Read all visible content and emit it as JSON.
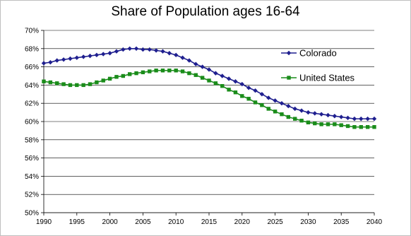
{
  "chart_data": {
    "type": "line",
    "title": "Share of Population ages 16-64",
    "xlabel": "",
    "ylabel": "",
    "xlim": [
      1990,
      2040
    ],
    "ylim": [
      50,
      70
    ],
    "xticks": [
      "1990",
      "1995",
      "2000",
      "2005",
      "2010",
      "2015",
      "2020",
      "2025",
      "2030",
      "2035",
      "2040"
    ],
    "yticks": [
      "50%",
      "52%",
      "54%",
      "56%",
      "58%",
      "60%",
      "62%",
      "64%",
      "66%",
      "68%",
      "70%"
    ],
    "grid": "horizontal",
    "legend_position": "top-right",
    "x": [
      1990,
      1991,
      1992,
      1993,
      1994,
      1995,
      1996,
      1997,
      1998,
      1999,
      2000,
      2001,
      2002,
      2003,
      2004,
      2005,
      2006,
      2007,
      2008,
      2009,
      2010,
      2011,
      2012,
      2013,
      2014,
      2015,
      2016,
      2017,
      2018,
      2019,
      2020,
      2021,
      2022,
      2023,
      2024,
      2025,
      2026,
      2027,
      2028,
      2029,
      2030,
      2031,
      2032,
      2033,
      2034,
      2035,
      2036,
      2037,
      2038,
      2039,
      2040
    ],
    "series": [
      {
        "name": "Colorado",
        "color": "#1f1f8f",
        "marker": "diamond",
        "values": [
          66.4,
          66.5,
          66.7,
          66.8,
          66.9,
          67.0,
          67.1,
          67.2,
          67.3,
          67.4,
          67.5,
          67.7,
          67.9,
          68.0,
          68.0,
          67.9,
          67.9,
          67.8,
          67.7,
          67.5,
          67.3,
          67.0,
          66.7,
          66.3,
          66.0,
          65.7,
          65.3,
          65.0,
          64.7,
          64.4,
          64.1,
          63.7,
          63.4,
          63.0,
          62.6,
          62.3,
          62.0,
          61.7,
          61.4,
          61.2,
          61.0,
          60.9,
          60.8,
          60.7,
          60.6,
          60.5,
          60.4,
          60.3,
          60.3,
          60.3,
          60.3
        ]
      },
      {
        "name": "United States",
        "color": "#1a8c1a",
        "marker": "square",
        "values": [
          64.4,
          64.3,
          64.2,
          64.1,
          64.0,
          64.0,
          64.0,
          64.1,
          64.3,
          64.5,
          64.7,
          64.9,
          65.0,
          65.2,
          65.3,
          65.4,
          65.5,
          65.6,
          65.6,
          65.6,
          65.6,
          65.5,
          65.3,
          65.1,
          64.8,
          64.5,
          64.2,
          63.9,
          63.5,
          63.2,
          62.8,
          62.5,
          62.1,
          61.8,
          61.4,
          61.1,
          60.8,
          60.5,
          60.3,
          60.1,
          59.9,
          59.8,
          59.7,
          59.7,
          59.7,
          59.6,
          59.5,
          59.4,
          59.4,
          59.4,
          59.4
        ]
      }
    ]
  }
}
